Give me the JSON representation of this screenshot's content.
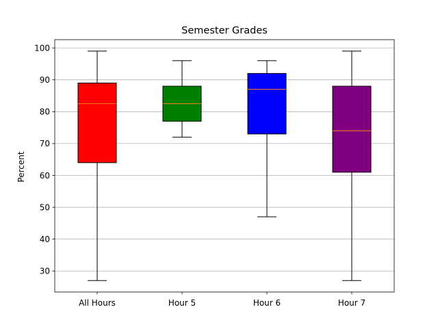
{
  "chart_data": {
    "type": "box",
    "title": "Semester Grades",
    "xlabel": "",
    "ylabel": "Percent",
    "ylim": [
      23.4,
      102.6
    ],
    "yticks": [
      30,
      40,
      50,
      60,
      70,
      80,
      90,
      100
    ],
    "grid": "y",
    "categories": [
      "All Hours",
      "Hour 5",
      "Hour 6",
      "Hour 7"
    ],
    "boxes": [
      {
        "name": "All Hours",
        "whisker_low": 27,
        "q1": 64,
        "median": 82.5,
        "q3": 89,
        "whisker_high": 99,
        "color": "#ff0000"
      },
      {
        "name": "Hour 5",
        "whisker_low": 72,
        "q1": 77,
        "median": 82.5,
        "q3": 88,
        "whisker_high": 96,
        "color": "#008000"
      },
      {
        "name": "Hour 6",
        "whisker_low": 47,
        "q1": 73,
        "median": 87,
        "q3": 92,
        "whisker_high": 96,
        "color": "#0000ff"
      },
      {
        "name": "Hour 7",
        "whisker_low": 27,
        "q1": 61,
        "median": 74,
        "q3": 88,
        "whisker_high": 99,
        "color": "#800080"
      }
    ],
    "colors": {
      "median_line": "#ff7f0e",
      "grid": "#b0b0b0",
      "axis": "#000000"
    }
  }
}
